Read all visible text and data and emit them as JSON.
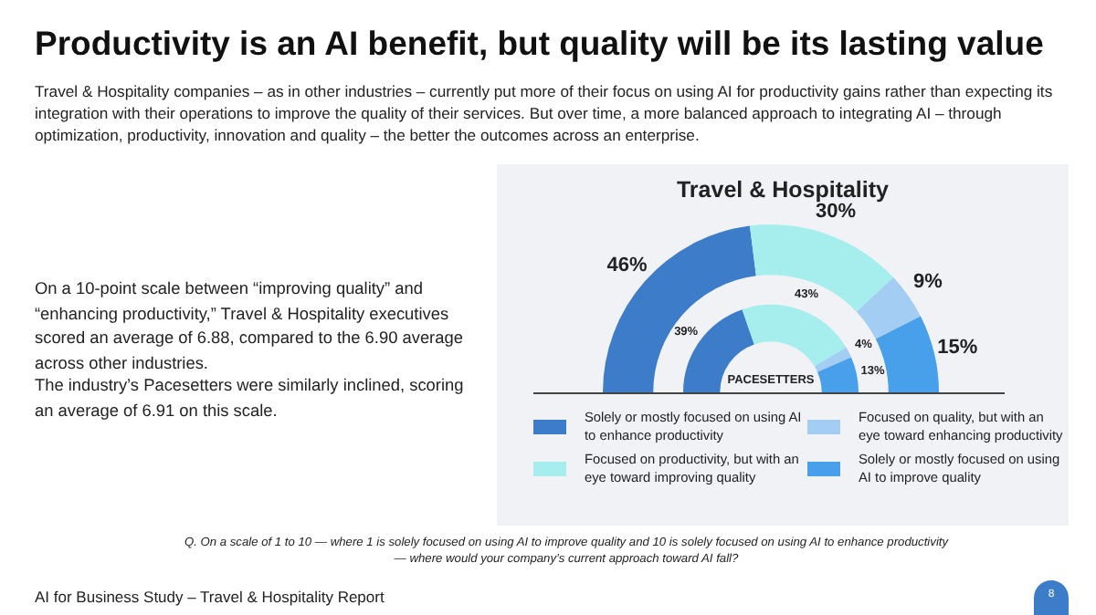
{
  "chart_data": {
    "type": "donut",
    "title": "Travel & Hospitality",
    "subtitle": "Productivity is an AI benefit, but quality will be its lasting value",
    "categories": [
      "Solely or mostly focused on using AI to enhance productivity",
      "Focused on productivity, but with an eye toward improving quality",
      "Focused on quality, but with an eye toward enhancing productivity",
      "Solely or mostly focused on using AI to improve quality"
    ],
    "colors": [
      "#3d7cc9",
      "#a6eeee",
      "#a3cdf2",
      "#49a0ea"
    ],
    "series": [
      {
        "values": [
          46,
          30,
          9,
          15
        ],
        "value_labels": [
          "46%",
          "30%",
          "9%",
          "15%"
        ]
      },
      {
        "name": "PACESETTERS",
        "values": [
          39,
          43,
          4,
          13
        ],
        "value_labels": [
          "39%",
          "43%",
          "4%",
          "13%"
        ]
      }
    ],
    "legend": "bottom",
    "annotations": [
      "Travel & Hospitality companies – as in other industries – currently put more of their focus on using AI for productivity gains rather than expecting its integration with their operations to improve the quality of their services. But over time, a more balanced approach to integrating AI – through optimization, productivity, innovation and quality – the better the outcomes across an enterprise.",
      "On a 10-point scale between “improving quality” and “enhancing productivity,” Travel & Hospitality executives scored an average of 6.88, compared to the 6.90 average across other industries.",
      "The industry’s Pacesetters were similarly inclined, scoring an average of 6.91 on this scale.",
      "Q. On a scale of 1 to 10 — where 1 is solely focused on using AI to improve quality and 10 is solely focused on using AI to enhance productivity — where would your company’s current approach toward AI fall?",
      "AI for Business Study – Travel & Hospitality Report",
      "8"
    ]
  }
}
